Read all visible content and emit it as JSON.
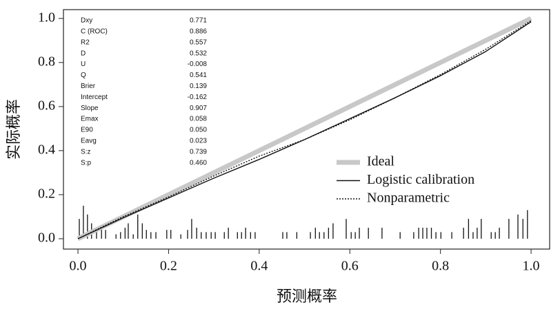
{
  "chart_data": {
    "type": "line",
    "xlabel": "预测概率",
    "ylabel": "实际概率",
    "xlim": [
      -0.032,
      1.041
    ],
    "ylim": [
      -0.047,
      1.04
    ],
    "xticks": [
      {
        "value": 0,
        "label": "0.0"
      },
      0.2,
      0.4,
      0.6,
      0.8,
      {
        "value": 1,
        "label": "1.0"
      }
    ],
    "yticks": [
      {
        "value": 0,
        "label": "0.0"
      },
      0.2,
      0.4,
      0.6,
      0.8,
      {
        "value": 1,
        "label": "1.0"
      }
    ],
    "stats": {
      "labels": [
        "Dxy",
        "C (ROC)",
        "R2",
        "D",
        "U",
        "Q",
        "Brier",
        "Intercept",
        "Slope",
        "Emax",
        "E90",
        "Eavg",
        "S:z",
        "S:p"
      ],
      "values": [
        "0.771",
        "0.886",
        "0.557",
        "0.532",
        "-0.008",
        "0.541",
        "0.139",
        "-0.162",
        "0.907",
        "0.058",
        "0.050",
        "0.023",
        "0.739",
        "0.460"
      ]
    },
    "series": [
      {
        "name": "Ideal",
        "color": "#c8c8c8",
        "style": "thick",
        "x": [
          0,
          1
        ],
        "values": [
          0,
          1
        ]
      },
      {
        "name": "Logistic calibration",
        "color": "#111111",
        "style": "solid",
        "x": [
          0,
          0.1,
          0.2,
          0.3,
          0.4,
          0.5,
          0.6,
          0.7,
          0.8,
          0.9,
          1.0
        ],
        "values": [
          0.0,
          0.095,
          0.185,
          0.275,
          0.36,
          0.45,
          0.545,
          0.64,
          0.74,
          0.85,
          0.985
        ]
      },
      {
        "name": "Nonparametric",
        "color": "#111111",
        "style": "dotted",
        "x": [
          0,
          0.1,
          0.2,
          0.3,
          0.4,
          0.5,
          0.6,
          0.7,
          0.8,
          0.9,
          1.0
        ],
        "values": [
          0.0,
          0.1,
          0.19,
          0.285,
          0.375,
          0.45,
          0.54,
          0.64,
          0.745,
          0.86,
          0.99
        ]
      }
    ],
    "rug": {
      "color": "#111111",
      "x": [
        0.003,
        0.012,
        0.021,
        0.03,
        0.041,
        0.052,
        0.061,
        0.084,
        0.094,
        0.104,
        0.111,
        0.122,
        0.132,
        0.142,
        0.151,
        0.161,
        0.172,
        0.196,
        0.205,
        0.227,
        0.242,
        0.251,
        0.262,
        0.272,
        0.283,
        0.294,
        0.303,
        0.323,
        0.332,
        0.352,
        0.361,
        0.37,
        0.381,
        0.391,
        0.452,
        0.461,
        0.483,
        0.513,
        0.524,
        0.533,
        0.543,
        0.553,
        0.563,
        0.592,
        0.603,
        0.612,
        0.621,
        0.641,
        0.671,
        0.711,
        0.741,
        0.752,
        0.761,
        0.77,
        0.78,
        0.79,
        0.801,
        0.825,
        0.851,
        0.862,
        0.872,
        0.881,
        0.89,
        0.912,
        0.921,
        0.93,
        0.951,
        0.971,
        0.982,
        0.992
      ],
      "values": [
        0.09,
        0.15,
        0.11,
        0.07,
        0.03,
        0.05,
        0.04,
        0.02,
        0.03,
        0.05,
        0.07,
        0.02,
        0.11,
        0.07,
        0.04,
        0.03,
        0.03,
        0.04,
        0.04,
        0.02,
        0.04,
        0.09,
        0.05,
        0.03,
        0.03,
        0.03,
        0.03,
        0.03,
        0.05,
        0.03,
        0.03,
        0.05,
        0.03,
        0.03,
        0.03,
        0.03,
        0.03,
        0.03,
        0.05,
        0.03,
        0.03,
        0.05,
        0.07,
        0.09,
        0.03,
        0.03,
        0.05,
        0.05,
        0.05,
        0.03,
        0.03,
        0.05,
        0.05,
        0.05,
        0.05,
        0.03,
        0.03,
        0.03,
        0.05,
        0.09,
        0.03,
        0.05,
        0.09,
        0.03,
        0.03,
        0.05,
        0.09,
        0.11,
        0.09,
        0.13
      ]
    }
  }
}
